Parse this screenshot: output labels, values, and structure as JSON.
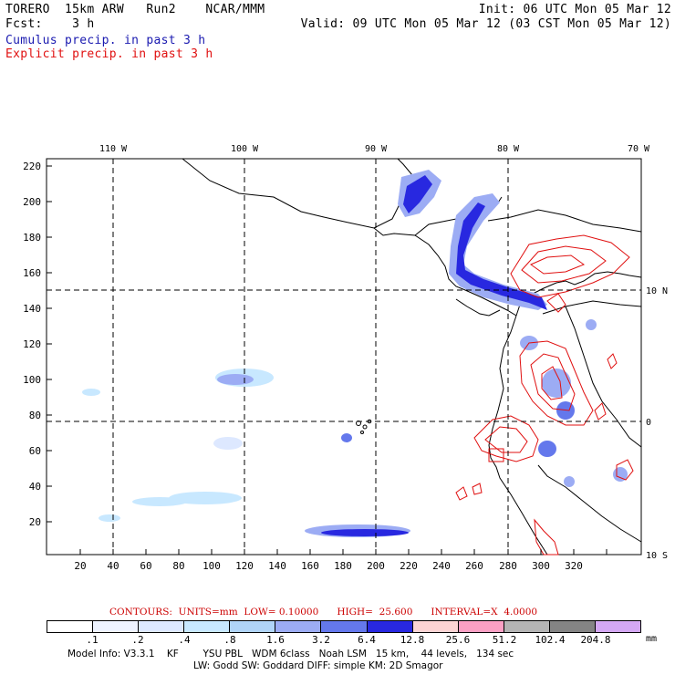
{
  "header": {
    "model_line": "TORERO  15km ARW   Run2    NCAR/MMM",
    "fcst_line": "Fcst:    3 h",
    "init_line": "Init: 06 UTC Mon 05 Mar 12",
    "valid_line": "Valid: 09 UTC Mon 05 Mar 12 (03 CST Mon 05 Mar 12)",
    "cumulus_label": "Cumulus precip. in past 3 h",
    "explicit_label": "Explicit precip. in past 3 h"
  },
  "map": {
    "lon_labels": [
      "110 W",
      "100 W",
      "90 W",
      "80 W",
      "70 W"
    ],
    "lat_labels": [
      "10 N",
      "0",
      "10 S"
    ],
    "x_ticks": [
      "20",
      "40",
      "60",
      "80",
      "100",
      "120",
      "140",
      "160",
      "180",
      "200",
      "220",
      "240",
      "260",
      "280",
      "300",
      "320"
    ],
    "y_ticks": [
      "20",
      "40",
      "60",
      "80",
      "100",
      "120",
      "140",
      "160",
      "180",
      "200",
      "220"
    ]
  },
  "colorbar": {
    "colors": [
      "#ffffff",
      "#eef3ff",
      "#dde8ff",
      "#c8e8ff",
      "#b0d4f8",
      "#9cacf4",
      "#6478ec",
      "#2828e0",
      "#fcd4d4",
      "#fba0c4",
      "#b4b4b4",
      "#848484",
      "#d4a8f4"
    ],
    "labels": [
      ".1",
      ".2",
      ".4",
      ".8",
      "1.6",
      "3.2",
      "6.4",
      "12.8",
      "25.6",
      "51.2",
      "102.4",
      "204.8"
    ],
    "units": "mm"
  },
  "contours_line": "CONTOURS:  UNITS=mm  LOW= 0.10000      HIGH=  25.600      INTERVAL=X  4.0000",
  "footer": {
    "line1": "Model Info: V3.3.1    KF        YSU PBL   WDM 6class   Noah LSM   15 km,    44 levels,   134 sec",
    "line2": "LW: Godd SW: Goddard DIFF: simple KM: 2D Smagor"
  }
}
